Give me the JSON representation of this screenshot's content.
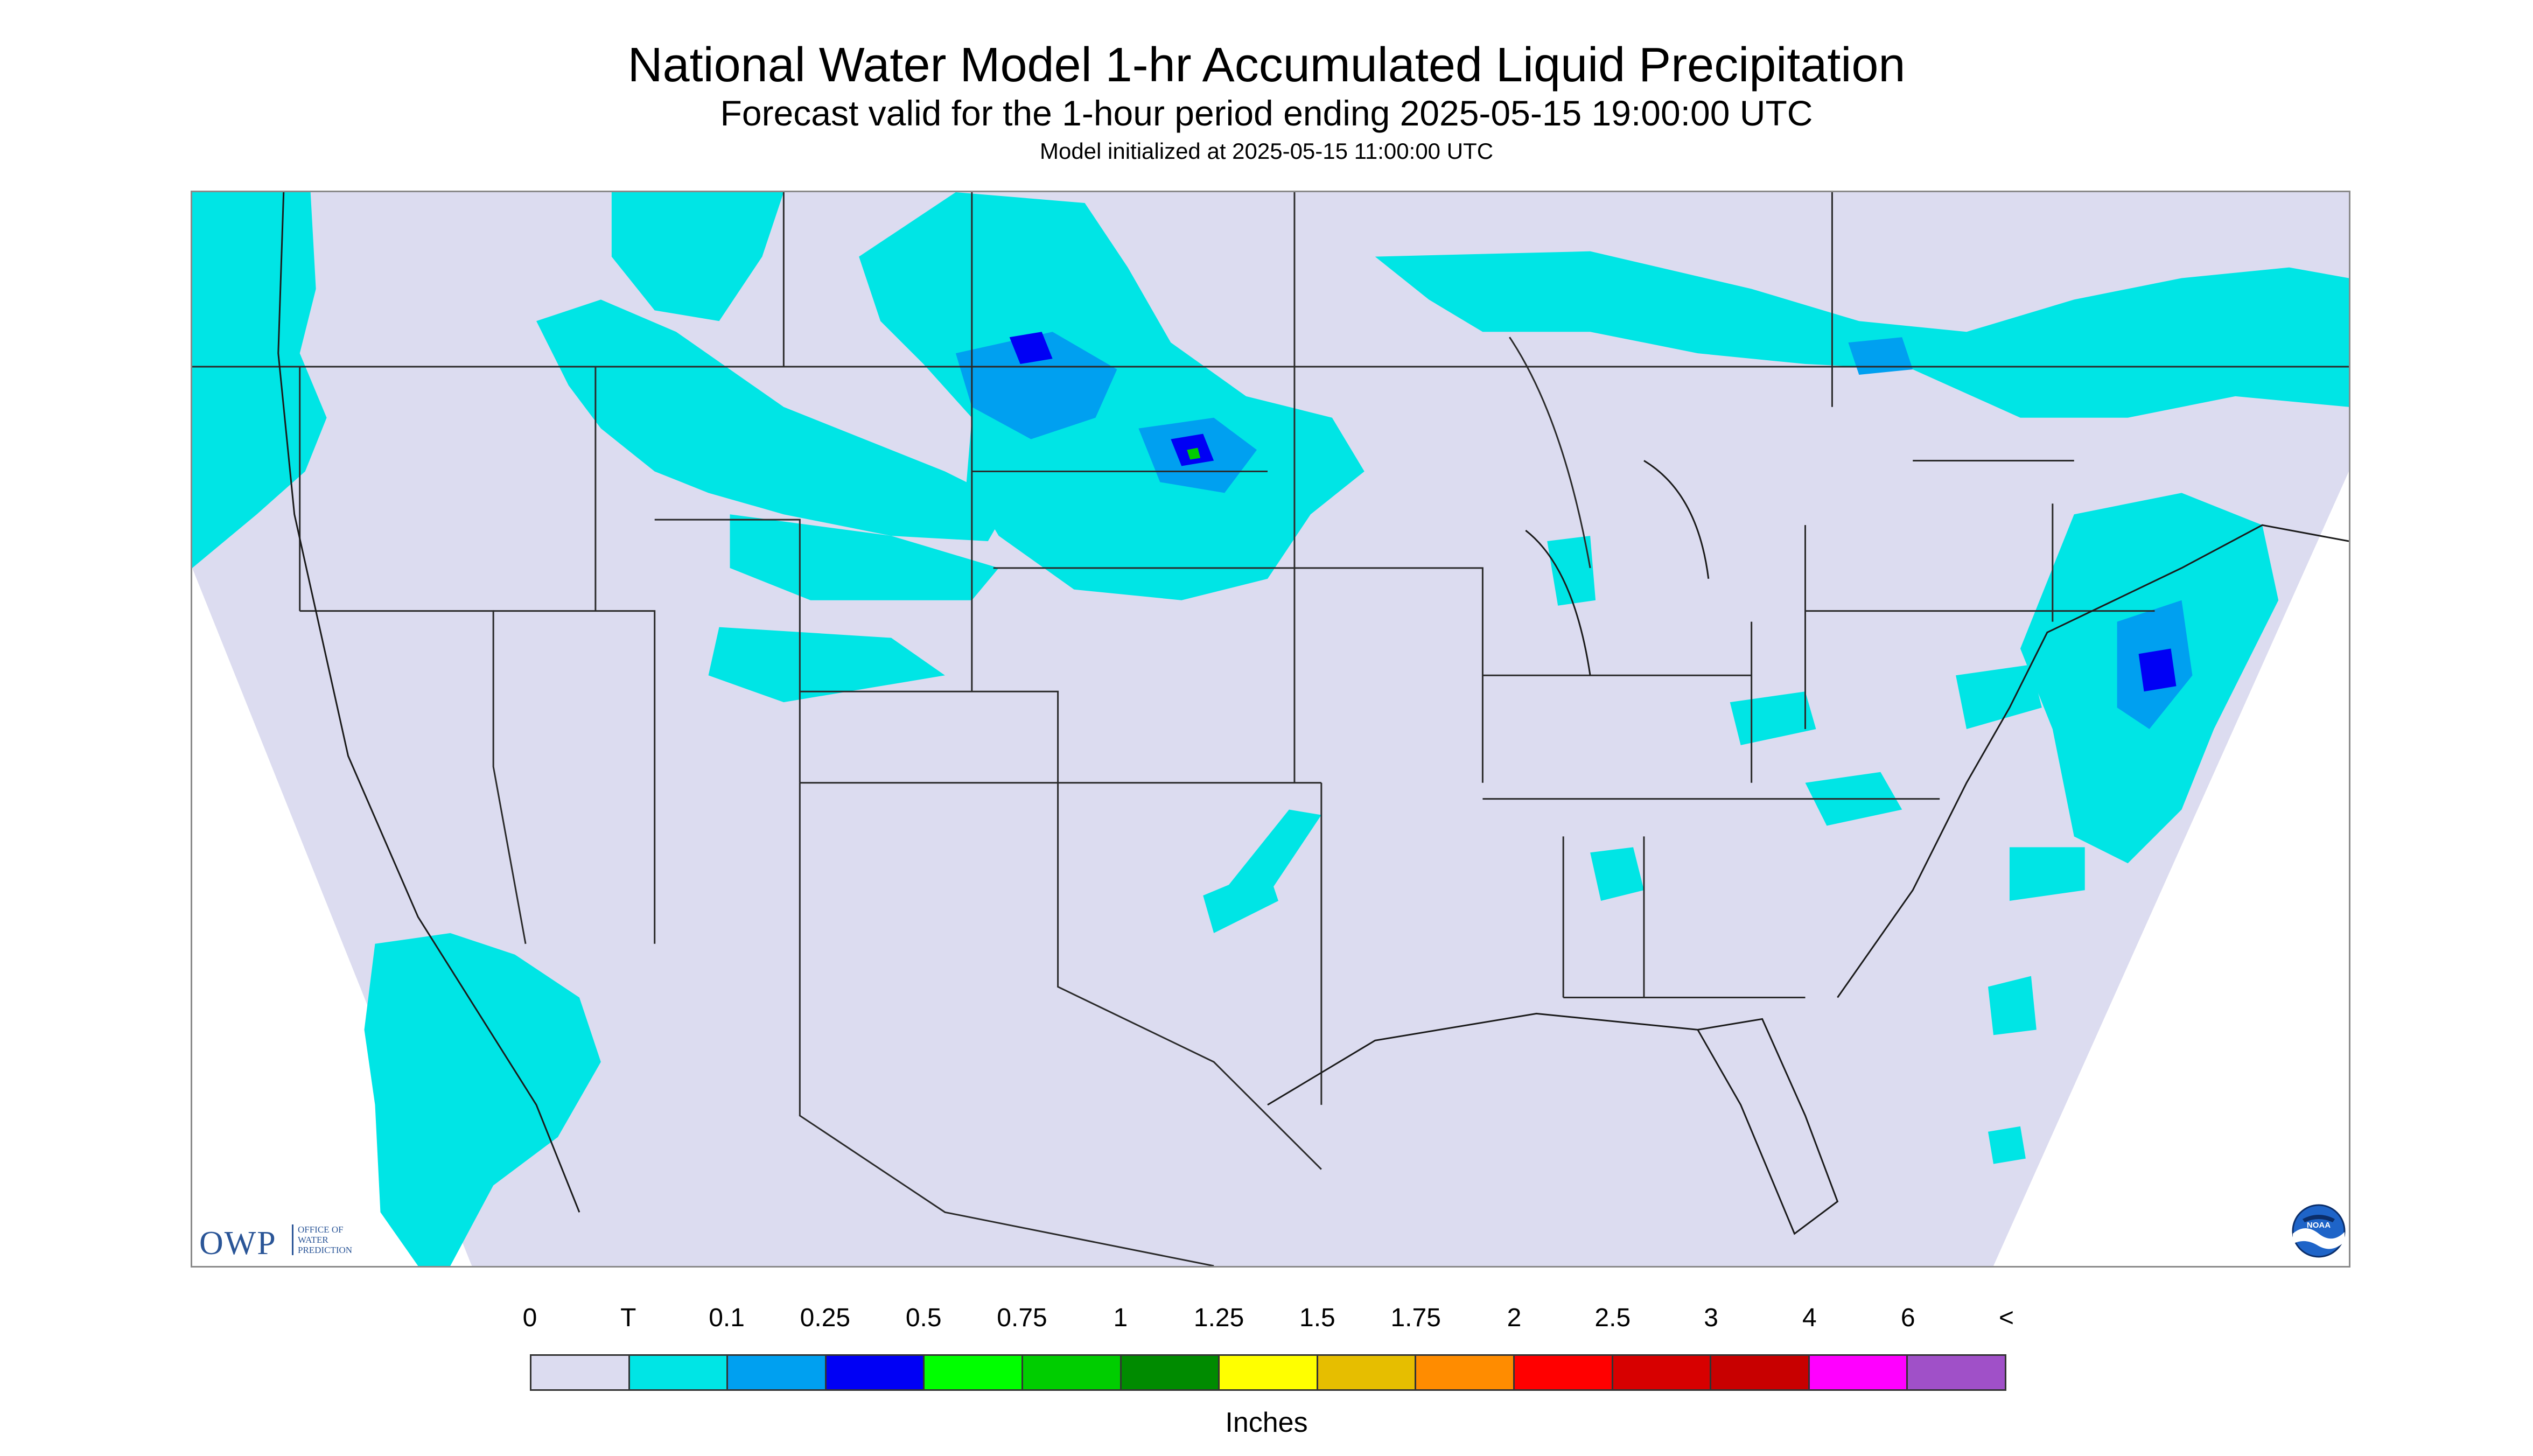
{
  "header": {
    "title": "National Water Model 1-hr Accumulated Liquid Precipitation",
    "subtitle": "Forecast valid for the 1-hour period ending 2025-05-15 19:00:00 UTC",
    "init": "Model initialized at 2025-05-15 11:00:00 UTC"
  },
  "logos": {
    "owp_letters": "OWP",
    "owp_sub": "OFFICE OF\nWATER\nPREDICTION",
    "noaa": "NOAA"
  },
  "legend": {
    "labels": [
      "0",
      "T",
      "0.1",
      "0.25",
      "0.5",
      "0.75",
      "1",
      "1.25",
      "1.5",
      "1.75",
      "2",
      "2.5",
      "3",
      "4",
      "6",
      "<"
    ],
    "colors": [
      "#dcdcf0",
      "#00e5e5",
      "#00a0f0",
      "#0000f5",
      "#00ff00",
      "#00cd00",
      "#008b00",
      "#ffff00",
      "#e6be00",
      "#ff8c00",
      "#ff0000",
      "#d70000",
      "#c80000",
      "#ff00ff",
      "#a050c8"
    ],
    "units": "Inches"
  },
  "map": {
    "domain_color": "#dcdcf0",
    "outside_color": "#ffffff",
    "boundary_color": "#2a2a2a"
  }
}
